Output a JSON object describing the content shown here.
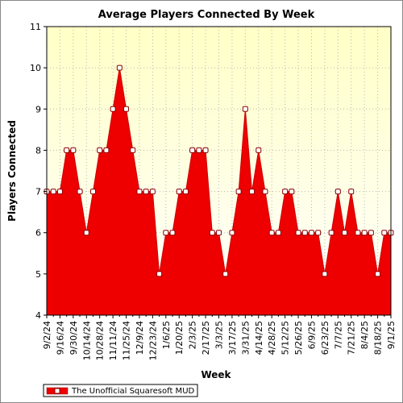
{
  "chart_data": {
    "type": "area",
    "title": "Average Players Connected By Week",
    "xlabel": "Week",
    "ylabel": "Players Connected",
    "ylim": [
      4,
      11
    ],
    "yticks": [
      4,
      5,
      6,
      7,
      8,
      9,
      10,
      11
    ],
    "grid": "dotted",
    "legend_position": "bottom-left",
    "colors": {
      "fill": "#ee0000",
      "line": "#cc0000",
      "marker_fill": "#ffffff",
      "marker_stroke": "#8b0000",
      "plot_bg_top": "#ffffc6",
      "plot_bg_bottom": "#ffffff"
    },
    "x_tick_labels": [
      "9/2/24",
      "9/16/24",
      "9/30/24",
      "10/14/24",
      "10/28/24",
      "11/11/24",
      "11/25/24",
      "12/9/24",
      "12/23/24",
      "1/6/25",
      "1/20/25",
      "2/3/25",
      "2/17/25",
      "3/3/25",
      "3/17/25",
      "3/31/25",
      "4/14/25",
      "4/28/25",
      "5/12/25",
      "5/26/25",
      "6/9/25",
      "6/23/25",
      "7/7/25",
      "7/21/25",
      "8/4/25",
      "8/18/25",
      "9/1/25"
    ],
    "series": [
      {
        "name": "The Unofficial Squaresoft MUD",
        "values": [
          7,
          7,
          7,
          8,
          8,
          7,
          6,
          7,
          8,
          8,
          9,
          10,
          9,
          8,
          7,
          7,
          7,
          5,
          6,
          6,
          7,
          7,
          8,
          8,
          8,
          6,
          6,
          5,
          6,
          7,
          9,
          7,
          8,
          7,
          6,
          6,
          7,
          7,
          6,
          6,
          6,
          6,
          5,
          6,
          7,
          6,
          7,
          6,
          6,
          6,
          5,
          6,
          6
        ]
      }
    ]
  }
}
